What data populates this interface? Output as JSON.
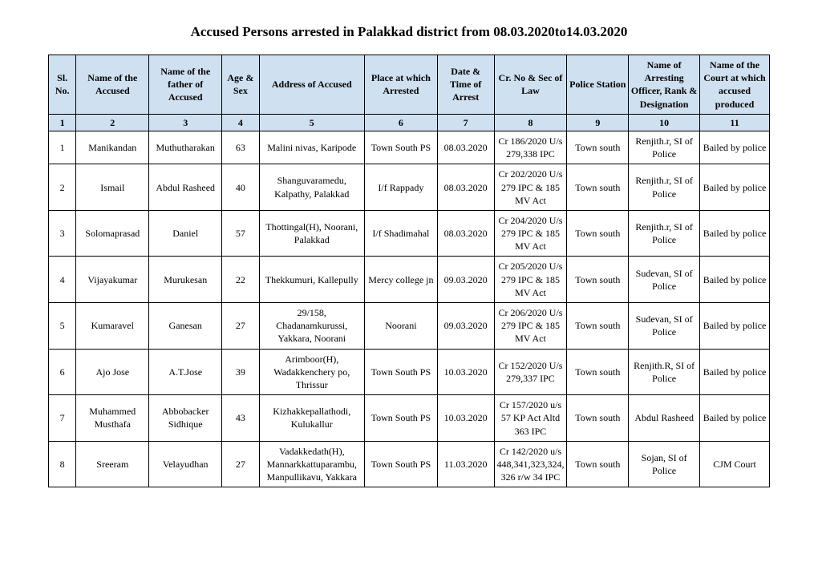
{
  "title": "Accused Persons arrested in   Palakkad district from  08.03.2020to14.03.2020",
  "columns": [
    "Sl. No.",
    "Name of the Accused",
    "Name of the father of Accused",
    "Age & Sex",
    "Address of Accused",
    "Place at which Arrested",
    "Date & Time of Arrest",
    "Cr. No & Sec of Law",
    "Police Station",
    "Name of Arresting Officer, Rank & Designation",
    "Name of the Court at which accused produced"
  ],
  "col_numbers": [
    "1",
    "2",
    "3",
    "4",
    "5",
    "6",
    "7",
    "8",
    "9",
    "10",
    "11"
  ],
  "rows": [
    {
      "sl": "1",
      "name": "Manikandan",
      "father": "Muthutharakan",
      "age": "63",
      "addr": "Malini nivas, Karipode",
      "place": "Town South PS",
      "date": "08.03.2020",
      "cr": "Cr 186/2020 U/s 279,338 IPC",
      "ps": "Town south",
      "officer": "Renjith.r, SI of Police",
      "court": "Bailed by police"
    },
    {
      "sl": "2",
      "name": "Ismail",
      "father": "Abdul  Rasheed",
      "age": "40",
      "addr": "Shanguvaramedu, Kalpathy, Palakkad",
      "place": "I/f  Rappady",
      "date": "08.03.2020",
      "cr": "Cr 202/2020 U/s 279 IPC & 185 MV Act",
      "ps": "Town south",
      "officer": "Renjith.r, SI of Police",
      "court": "Bailed by police"
    },
    {
      "sl": "3",
      "name": "Solomaprasad",
      "father": "Daniel",
      "age": "57",
      "addr": "Thottingal(H), Noorani, Palakkad",
      "place": "I/f  Shadimahal",
      "date": "08.03.2020",
      "cr": "Cr  204/2020 U/s 279 IPC & 185 MV Act",
      "ps": "Town south",
      "officer": "Renjith.r, SI of Police",
      "court": "Bailed by police"
    },
    {
      "sl": "4",
      "name": "Vijayakumar",
      "father": "Murukesan",
      "age": "22",
      "addr": "Thekkumuri, Kallepully",
      "place": "Mercy college jn",
      "date": "09.03.2020",
      "cr": "Cr 205/2020 U/s 279 IPC & 185 MV Act",
      "ps": "Town south",
      "officer": "Sudevan, SI of Police",
      "court": "Bailed by police"
    },
    {
      "sl": "5",
      "name": "Kumaravel",
      "father": "Ganesan",
      "age": "27",
      "addr": "29/158, Chadanamkurussi, Yakkara, Noorani",
      "place": "Noorani",
      "date": "09.03.2020",
      "cr": "Cr 206/2020 U/s 279 IPC & 185 MV Act",
      "ps": "Town south",
      "officer": "Sudevan, SI of Police",
      "court": "Bailed by police"
    },
    {
      "sl": "6",
      "name": "Ajo Jose",
      "father": "A.T.Jose",
      "age": "39",
      "addr": "Arimboor(H), Wadakkenchery po, Thrissur",
      "place": "Town South PS",
      "date": "10.03.2020",
      "cr": "Cr 152/2020 U/s 279,337 IPC",
      "ps": "Town south",
      "officer": "Renjith.R, SI of Police",
      "court": "Bailed by police"
    },
    {
      "sl": "7",
      "name": "Muhammed Musthafa",
      "father": "Abbobacker Sidhique",
      "age": "43",
      "addr": "Kizhakkepallathodi, Kulukallur",
      "place": "Town South PS",
      "date": "10.03.2020",
      "cr": "Cr 157/2020 u/s 57 KP Act Altd 363 IPC",
      "ps": "Town south",
      "officer": "Abdul Rasheed",
      "court": "Bailed by police"
    },
    {
      "sl": "8",
      "name": "Sreeram",
      "father": "Velayudhan",
      "age": "27",
      "addr": "Vadakkedath(H), Mannarkkattuparambu, Manpullikavu, Yakkara",
      "place": "Town South PS",
      "date": "11.03.2020",
      "cr": "Cr 142/2020 u/s 448,341,323,324,326 r/w 34 IPC",
      "ps": "Town south",
      "officer": "Sojan, SI of Police",
      "court": "CJM Court"
    }
  ]
}
